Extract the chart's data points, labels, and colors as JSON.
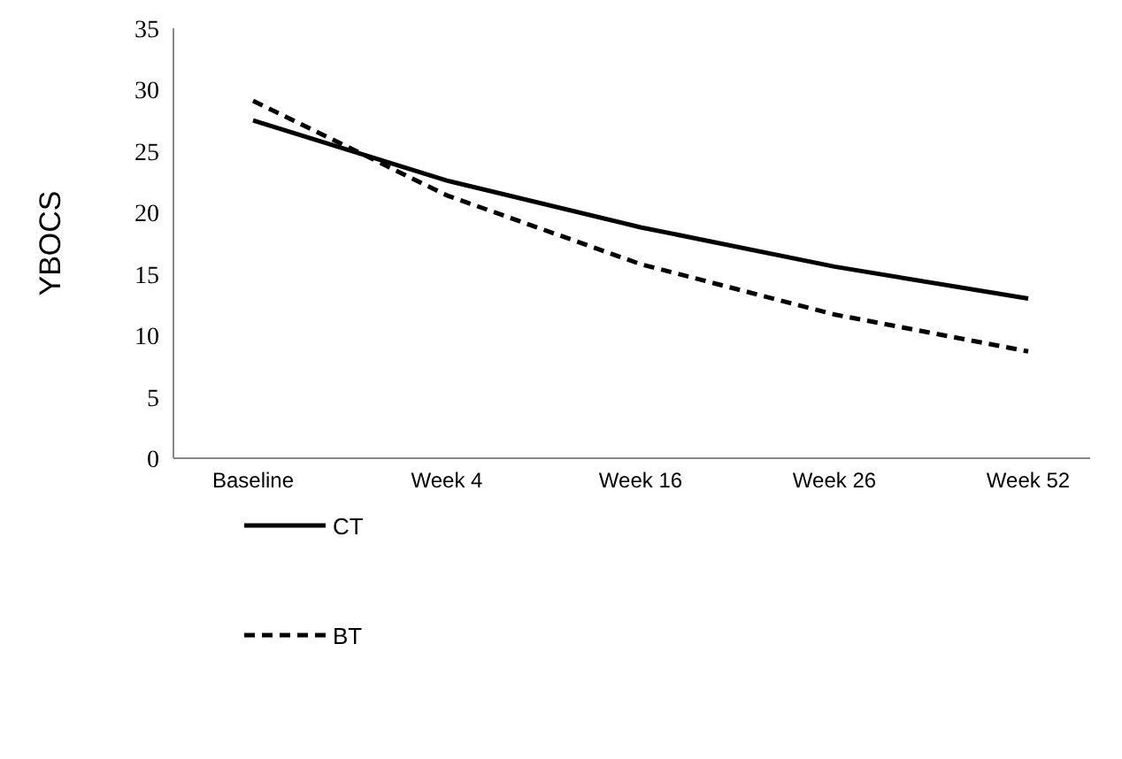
{
  "chart_data": {
    "type": "line",
    "ylabel": "YBOCS",
    "categories": [
      "Baseline",
      "Week 4",
      "Week 16",
      "Week 26",
      "Week 52"
    ],
    "series": [
      {
        "name": "CT",
        "color": "#000000",
        "line_style": "solid",
        "values": [
          27.5,
          22.6,
          18.8,
          15.6,
          13.0
        ]
      },
      {
        "name": "BT",
        "color": "#000000",
        "line_style": "dashed",
        "values": [
          29.1,
          21.4,
          15.8,
          11.7,
          8.7
        ]
      }
    ],
    "ylim": [
      0,
      35
    ],
    "yticks": [
      0,
      5,
      10,
      15,
      20,
      25,
      30,
      35
    ],
    "grid": false,
    "legend": "left",
    "marker": "none"
  }
}
